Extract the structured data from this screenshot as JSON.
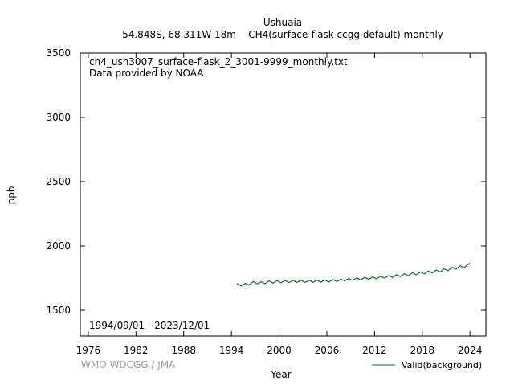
{
  "header": {
    "title": "Ushuaia",
    "subtitle": "54.848S, 68.311W 18m    CH4(surface-flask ccgg default) monthly"
  },
  "annotations": {
    "filename": "ch4_ush3007_surface-flask_2_3001-9999_monthly.txt",
    "provider": "Data provided by NOAA",
    "period": "1994/09/01 - 2023/12/01",
    "credit": "WMO WDCGG / JMA"
  },
  "colors": {
    "series": "#006d2c",
    "credit": "#999999"
  },
  "chart_data": {
    "type": "line",
    "xlabel": "Year",
    "ylabel": "ppb",
    "xlim": [
      1975,
      2026
    ],
    "ylim": [
      1300,
      3500
    ],
    "xticks": [
      "1976",
      "1982",
      "1988",
      "1994",
      "2000",
      "2006",
      "2012",
      "2018",
      "2024"
    ],
    "yticks": [
      "1500",
      "2000",
      "2500",
      "3000",
      "3500"
    ],
    "legend": "bottom-right",
    "grid": false,
    "series": [
      {
        "name": "Valid(background)",
        "x": [
          1994.75,
          1995.0,
          1995.25,
          1995.5,
          1995.75,
          1996.0,
          1996.25,
          1996.5,
          1996.75,
          1997.0,
          1997.25,
          1997.5,
          1997.75,
          1998.0,
          1998.25,
          1998.5,
          1998.75,
          1999.0,
          1999.25,
          1999.5,
          1999.75,
          2000.0,
          2000.25,
          2000.5,
          2000.75,
          2001.0,
          2001.25,
          2001.5,
          2001.75,
          2002.0,
          2002.25,
          2002.5,
          2002.75,
          2003.0,
          2003.25,
          2003.5,
          2003.75,
          2004.0,
          2004.25,
          2004.5,
          2004.75,
          2005.0,
          2005.25,
          2005.5,
          2005.75,
          2006.0,
          2006.25,
          2006.5,
          2006.75,
          2007.0,
          2007.25,
          2007.5,
          2007.75,
          2008.0,
          2008.25,
          2008.5,
          2008.75,
          2009.0,
          2009.25,
          2009.5,
          2009.75,
          2010.0,
          2010.25,
          2010.5,
          2010.75,
          2011.0,
          2011.25,
          2011.5,
          2011.75,
          2012.0,
          2012.25,
          2012.5,
          2012.75,
          2013.0,
          2013.25,
          2013.5,
          2013.75,
          2014.0,
          2014.25,
          2014.5,
          2014.75,
          2015.0,
          2015.25,
          2015.5,
          2015.75,
          2016.0,
          2016.25,
          2016.5,
          2016.75,
          2017.0,
          2017.25,
          2017.5,
          2017.75,
          2018.0,
          2018.25,
          2018.5,
          2018.75,
          2019.0,
          2019.25,
          2019.5,
          2019.75,
          2020.0,
          2020.25,
          2020.5,
          2020.75,
          2021.0,
          2021.25,
          2021.5,
          2021.75,
          2022.0,
          2022.25,
          2022.5,
          2022.75,
          2023.0,
          2023.25,
          2023.5,
          2023.75,
          2023.92
        ],
        "y": [
          1705,
          1697,
          1690,
          1700,
          1708,
          1700,
          1698,
          1712,
          1722,
          1714,
          1705,
          1712,
          1721,
          1713,
          1707,
          1719,
          1728,
          1719,
          1712,
          1721,
          1730,
          1722,
          1714,
          1722,
          1731,
          1723,
          1715,
          1723,
          1732,
          1724,
          1716,
          1724,
          1733,
          1725,
          1717,
          1724,
          1733,
          1726,
          1717,
          1725,
          1734,
          1726,
          1718,
          1726,
          1735,
          1727,
          1720,
          1729,
          1738,
          1731,
          1724,
          1732,
          1742,
          1735,
          1728,
          1737,
          1746,
          1739,
          1732,
          1741,
          1751,
          1744,
          1736,
          1745,
          1755,
          1748,
          1740,
          1749,
          1760,
          1752,
          1745,
          1754,
          1764,
          1757,
          1750,
          1759,
          1769,
          1762,
          1755,
          1765,
          1776,
          1769,
          1762,
          1772,
          1783,
          1776,
          1769,
          1779,
          1790,
          1783,
          1776,
          1786,
          1797,
          1790,
          1783,
          1793,
          1804,
          1797,
          1790,
          1801,
          1812,
          1805,
          1798,
          1809,
          1821,
          1815,
          1808,
          1820,
          1833,
          1827,
          1820,
          1832,
          1845,
          1838,
          1831,
          1843,
          1856,
          1863
        ]
      }
    ]
  }
}
